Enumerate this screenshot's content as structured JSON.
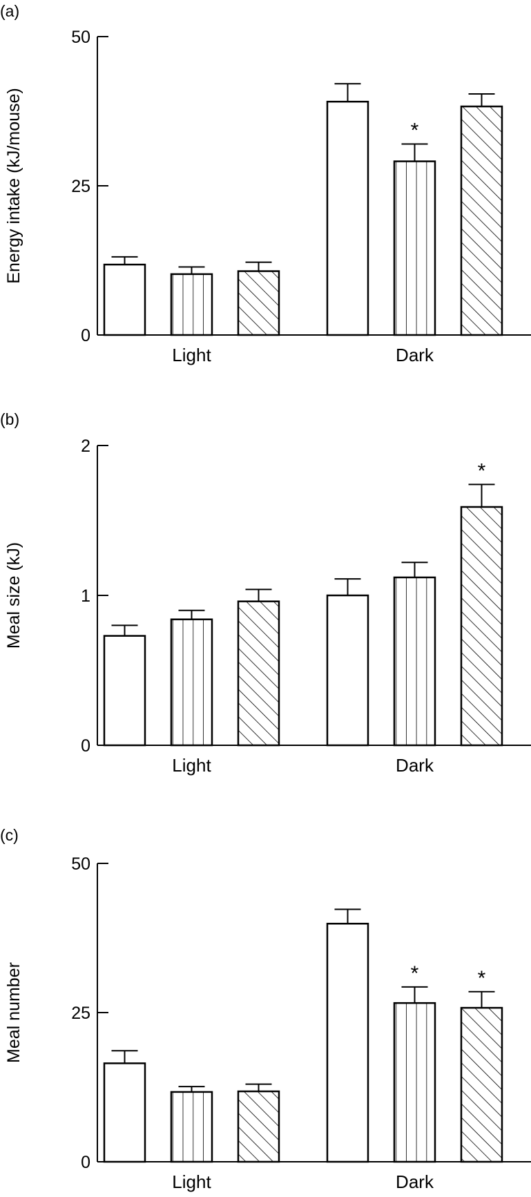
{
  "chart_data": [
    {
      "type": "bar",
      "panel_label": "(a)",
      "ylabel": "Energy intake (kJ/mouse)",
      "xlabel": "",
      "categories": [
        "Light",
        "Dark"
      ],
      "ylim": [
        0,
        50
      ],
      "yticks": [
        "0",
        "25",
        "50"
      ],
      "grid": false,
      "series": [
        {
          "pattern": "open",
          "values": [
            11.8,
            39.1
          ],
          "errors": [
            1.3,
            3.0
          ],
          "significant": [
            false,
            false
          ]
        },
        {
          "pattern": "vertical-lines",
          "values": [
            10.2,
            29.1
          ],
          "errors": [
            1.2,
            2.9
          ],
          "significant": [
            false,
            true
          ]
        },
        {
          "pattern": "diagonal-hatch",
          "values": [
            10.7,
            38.3
          ],
          "errors": [
            1.5,
            2.1
          ],
          "significant": [
            false,
            false
          ]
        }
      ],
      "significance_marker": "*"
    },
    {
      "type": "bar",
      "panel_label": "(b)",
      "ylabel": "Meal size (kJ)",
      "xlabel": "",
      "categories": [
        "Light",
        "Dark"
      ],
      "ylim": [
        0,
        2
      ],
      "yticks": [
        "0",
        "1",
        "2"
      ],
      "grid": false,
      "series": [
        {
          "pattern": "open",
          "values": [
            0.73,
            1.0
          ],
          "errors": [
            0.07,
            0.11
          ],
          "significant": [
            false,
            false
          ]
        },
        {
          "pattern": "vertical-lines",
          "values": [
            0.84,
            1.12
          ],
          "errors": [
            0.06,
            0.1
          ],
          "significant": [
            false,
            false
          ]
        },
        {
          "pattern": "diagonal-hatch",
          "values": [
            0.96,
            1.59
          ],
          "errors": [
            0.08,
            0.15
          ],
          "significant": [
            false,
            true
          ]
        }
      ],
      "significance_marker": "*"
    },
    {
      "type": "bar",
      "panel_label": "(c)",
      "ylabel": "Meal number",
      "xlabel": "",
      "categories": [
        "Light",
        "Dark"
      ],
      "ylim": [
        0,
        50
      ],
      "yticks": [
        "0",
        "25",
        "50"
      ],
      "grid": false,
      "series": [
        {
          "pattern": "open",
          "values": [
            16.5,
            39.9
          ],
          "errors": [
            2.1,
            2.4
          ],
          "significant": [
            false,
            false
          ]
        },
        {
          "pattern": "vertical-lines",
          "values": [
            11.7,
            26.6
          ],
          "errors": [
            0.9,
            2.7
          ],
          "significant": [
            false,
            true
          ]
        },
        {
          "pattern": "diagonal-hatch",
          "values": [
            11.8,
            25.8
          ],
          "errors": [
            1.2,
            2.7
          ],
          "significant": [
            false,
            true
          ]
        }
      ],
      "significance_marker": "*"
    }
  ]
}
